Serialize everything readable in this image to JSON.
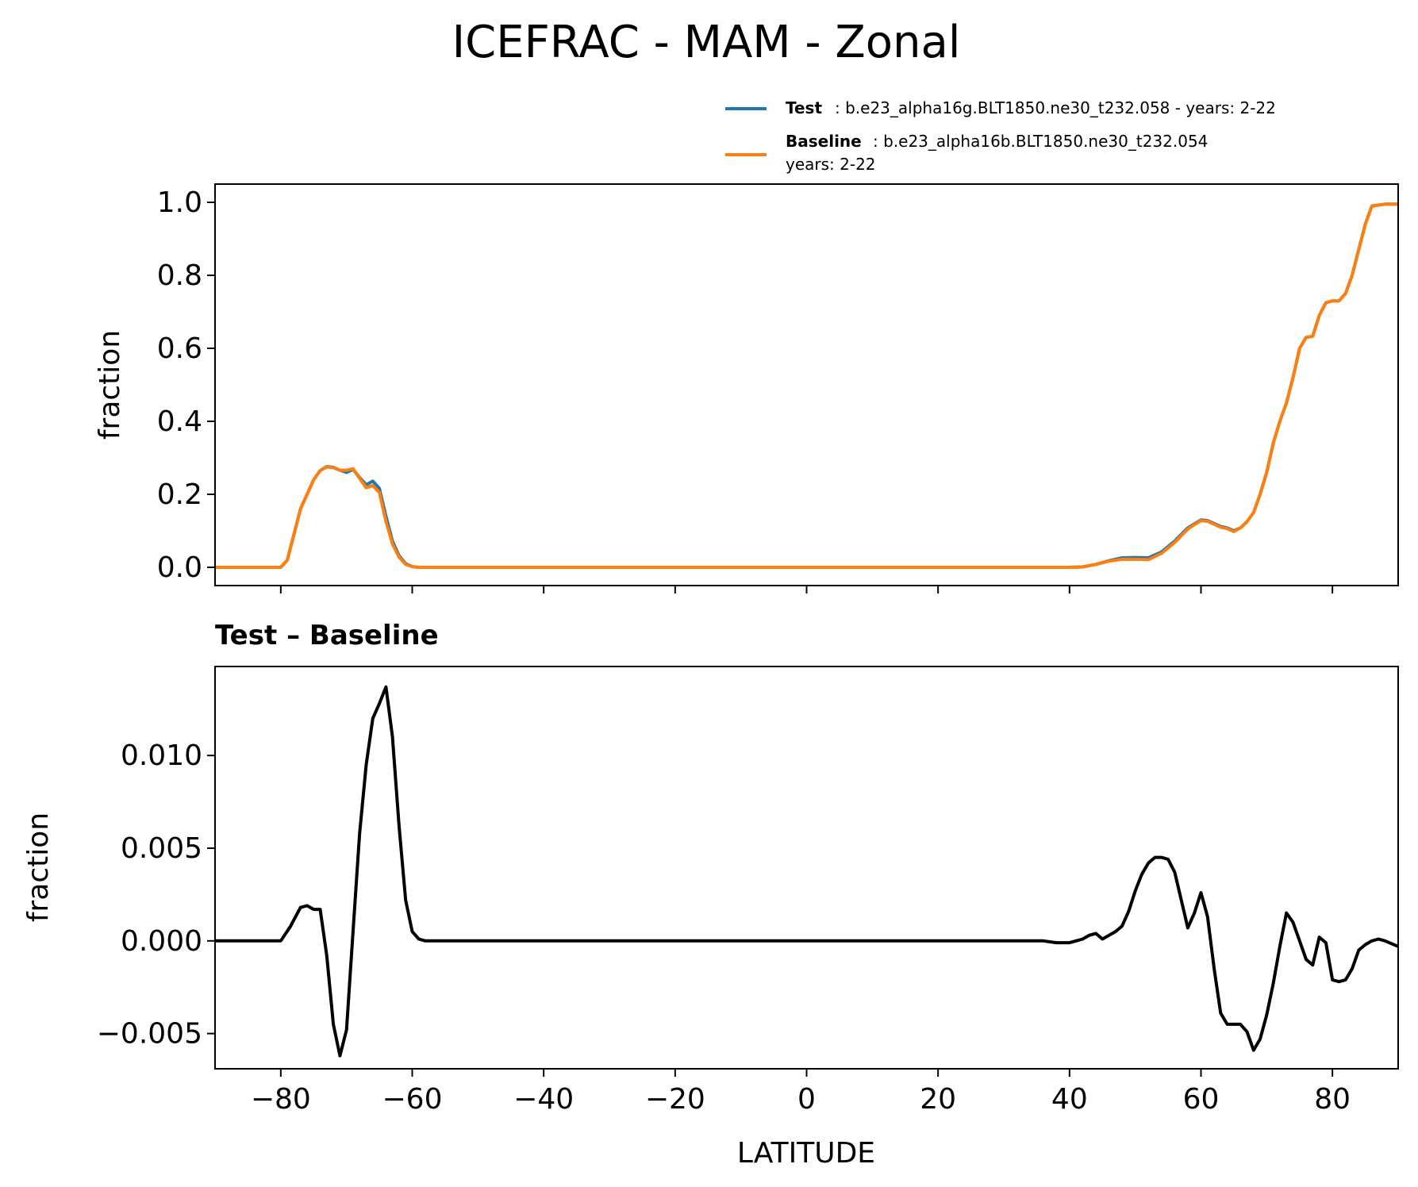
{
  "chart_data": [
    {
      "type": "line",
      "title": "ICEFRAC - MAM - Zonal",
      "xlabel": "",
      "ylabel": "fraction",
      "xlim": [
        -90,
        90
      ],
      "ylim": [
        -0.05,
        1.05
      ],
      "xticks": [
        -80,
        -60,
        -40,
        -20,
        0,
        20,
        40,
        60,
        80
      ],
      "yticks": [
        0.0,
        0.2,
        0.4,
        0.6,
        0.8,
        1.0
      ],
      "ytick_labels": [
        "0.0",
        "0.2",
        "0.4",
        "0.6",
        "0.8",
        "1.0"
      ],
      "legend": {
        "placement": "upper-right-above",
        "entries": [
          {
            "key": "Test",
            "text": ": b.e23_alpha16g.BLT1850.ne30_t232.058 - years: 2-22"
          },
          {
            "key": "Baseline",
            "text": ": b.e23_alpha16b.BLT1850.ne30_t232.054",
            "text2": "years: 2-22"
          }
        ]
      },
      "series": [
        {
          "name": "Test",
          "color": "#1f77b4",
          "x": [
            -90,
            -80,
            -79,
            -78,
            -77,
            -76,
            -75,
            -74,
            -73,
            -72,
            -71,
            -70,
            -69,
            -68,
            -67,
            -66,
            -65,
            -64,
            -63,
            -62,
            -61,
            -60,
            -59,
            -58,
            -50,
            0,
            40,
            42,
            44,
            46,
            48,
            50,
            52,
            54,
            56,
            58,
            60,
            61,
            62,
            63,
            64,
            65,
            66,
            67,
            68,
            69,
            70,
            71,
            72,
            73,
            74,
            75,
            76,
            77,
            78,
            79,
            80,
            81,
            82,
            83,
            84,
            85,
            86,
            88,
            90
          ],
          "y": [
            0.0,
            0.0,
            0.02,
            0.09,
            0.16,
            0.2,
            0.24,
            0.265,
            0.276,
            0.274,
            0.266,
            0.26,
            0.268,
            0.246,
            0.226,
            0.236,
            0.216,
            0.14,
            0.072,
            0.032,
            0.01,
            0.002,
            0.0,
            0.0,
            0.0,
            0.0,
            0.0,
            0.001,
            0.008,
            0.018,
            0.026,
            0.027,
            0.026,
            0.042,
            0.072,
            0.108,
            0.13,
            0.128,
            0.12,
            0.112,
            0.108,
            0.1,
            0.108,
            0.125,
            0.15,
            0.2,
            0.26,
            0.34,
            0.4,
            0.45,
            0.52,
            0.6,
            0.63,
            0.633,
            0.69,
            0.725,
            0.73,
            0.73,
            0.75,
            0.8,
            0.87,
            0.94,
            0.99,
            0.995,
            0.995
          ]
        },
        {
          "name": "Baseline",
          "color": "#ff7f0e",
          "x": [
            -90,
            -80,
            -79,
            -78,
            -77,
            -76,
            -75,
            -74,
            -73,
            -72,
            -71,
            -70,
            -69,
            -68,
            -67,
            -66,
            -65,
            -64,
            -63,
            -62,
            -61,
            -60,
            -59,
            -58,
            -50,
            0,
            40,
            42,
            44,
            46,
            48,
            50,
            52,
            54,
            56,
            58,
            60,
            61,
            62,
            63,
            64,
            65,
            66,
            67,
            68,
            69,
            70,
            71,
            72,
            73,
            74,
            75,
            76,
            77,
            78,
            79,
            80,
            81,
            82,
            83,
            84,
            85,
            86,
            88,
            90
          ],
          "y": [
            0.0,
            0.0,
            0.02,
            0.09,
            0.16,
            0.2,
            0.24,
            0.265,
            0.275,
            0.273,
            0.266,
            0.266,
            0.27,
            0.244,
            0.218,
            0.224,
            0.205,
            0.126,
            0.064,
            0.028,
            0.008,
            0.002,
            0.0,
            0.0,
            0.0,
            0.0,
            0.0,
            0.001,
            0.008,
            0.017,
            0.022,
            0.022,
            0.021,
            0.038,
            0.068,
            0.105,
            0.128,
            0.126,
            0.118,
            0.11,
            0.106,
            0.098,
            0.108,
            0.125,
            0.15,
            0.2,
            0.26,
            0.34,
            0.4,
            0.45,
            0.52,
            0.6,
            0.63,
            0.633,
            0.69,
            0.725,
            0.73,
            0.73,
            0.75,
            0.8,
            0.87,
            0.94,
            0.99,
            0.995,
            0.995
          ]
        }
      ]
    },
    {
      "type": "line",
      "title": "Test – Baseline",
      "xlabel": "LATITUDE",
      "ylabel": "fraction",
      "xlim": [
        -90,
        90
      ],
      "ylim": [
        -0.0069,
        0.0148
      ],
      "xticks": [
        -80,
        -60,
        -40,
        -20,
        0,
        20,
        40,
        60,
        80
      ],
      "xtick_labels": [
        "−80",
        "−60",
        "−40",
        "−20",
        "0",
        "20",
        "40",
        "60",
        "80"
      ],
      "yticks": [
        -0.005,
        0.0,
        0.005,
        0.01
      ],
      "ytick_labels": [
        "−0.005",
        "0.000",
        "0.005",
        "0.010"
      ],
      "series": [
        {
          "name": "Test – Baseline",
          "color": "#000000",
          "x": [
            -90,
            -80,
            -78.5,
            -77,
            -76,
            -75,
            -74,
            -73,
            -72,
            -71,
            -70,
            -69,
            -68,
            -67,
            -66,
            -65,
            -64,
            -63,
            -62,
            -61,
            -60,
            -59,
            -58,
            -50,
            0,
            36,
            38,
            40,
            41,
            42,
            43,
            44,
            45,
            46,
            47,
            48,
            49,
            50,
            51,
            52,
            53,
            54,
            55,
            56,
            57,
            58,
            59,
            60,
            61,
            62,
            63,
            64,
            65,
            66,
            67,
            68,
            69,
            70,
            71,
            72,
            73,
            74,
            75,
            76,
            77,
            78,
            79,
            80,
            81,
            82,
            83,
            84,
            85,
            86,
            87,
            88,
            90
          ],
          "y": [
            0.0,
            0.0,
            0.0008,
            0.0018,
            0.0019,
            0.0017,
            0.0017,
            -0.0008,
            -0.0045,
            -0.0062,
            -0.0048,
            0.0005,
            0.0058,
            0.0095,
            0.012,
            0.0128,
            0.0137,
            0.011,
            0.0062,
            0.0022,
            0.0005,
            0.0001,
            0.0,
            0.0,
            0.0,
            0.0,
            -0.0001,
            -0.0001,
            0.0,
            0.0001,
            0.0003,
            0.0004,
            0.0001,
            0.0003,
            0.0005,
            0.0008,
            0.0016,
            0.0027,
            0.0036,
            0.0042,
            0.0045,
            0.0045,
            0.0044,
            0.0037,
            0.0022,
            0.0007,
            0.0015,
            0.0026,
            0.0013,
            -0.0015,
            -0.0039,
            -0.0045,
            -0.0045,
            -0.0045,
            -0.0049,
            -0.0059,
            -0.0053,
            -0.004,
            -0.0023,
            -0.0003,
            0.0015,
            0.001,
            0.0,
            -0.001,
            -0.0013,
            0.0002,
            -0.0001,
            -0.0021,
            -0.0022,
            -0.0021,
            -0.0015,
            -0.0005,
            -0.0002,
            0.0,
            0.0001,
            0.0,
            -0.0003
          ]
        }
      ]
    }
  ]
}
